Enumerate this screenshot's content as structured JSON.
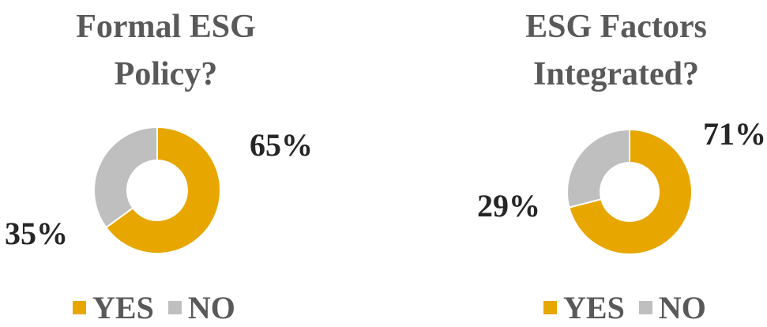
{
  "chart_data": [
    {
      "type": "pie",
      "title": [
        "Formal ESG",
        "Policy?"
      ],
      "categories": [
        "YES",
        "NO"
      ],
      "values": [
        65,
        35
      ],
      "labels": [
        "65%",
        "35%"
      ],
      "colors": [
        "#E8A600",
        "#BFBFBF"
      ],
      "legend": "bottom"
    },
    {
      "type": "pie",
      "title": [
        "ESG Factors",
        "Integrated?"
      ],
      "categories": [
        "YES",
        "NO"
      ],
      "values": [
        71,
        29
      ],
      "labels": [
        "71%",
        "29%"
      ],
      "colors": [
        "#E8A600",
        "#BFBFBF"
      ],
      "legend": "bottom"
    }
  ]
}
